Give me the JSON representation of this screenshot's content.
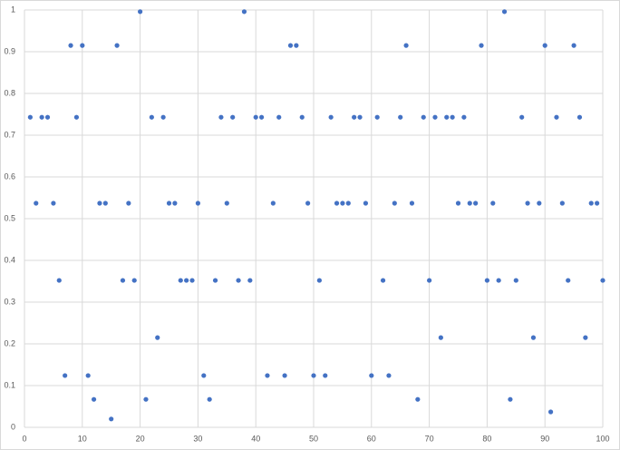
{
  "chart_data": {
    "type": "scatter",
    "color": "#4472c4",
    "grid": true,
    "x": [
      1,
      2,
      3,
      4,
      5,
      6,
      7,
      8,
      9,
      10,
      11,
      12,
      13,
      14,
      15,
      16,
      17,
      18,
      19,
      20,
      21,
      22,
      23,
      24,
      25,
      26,
      27,
      28,
      29,
      30,
      31,
      32,
      33,
      34,
      35,
      36,
      37,
      38,
      39,
      40,
      41,
      42,
      43,
      44,
      45,
      46,
      47,
      48,
      49,
      50,
      51,
      52,
      53,
      54,
      55,
      56,
      57,
      58,
      59,
      60,
      61,
      62,
      63,
      64,
      65,
      66,
      67,
      68,
      69,
      70,
      71,
      72,
      73,
      74,
      75,
      76,
      77,
      78,
      79,
      80,
      81,
      82,
      83,
      84,
      85,
      86,
      87,
      88,
      89,
      90,
      91,
      92,
      93,
      94,
      95,
      96,
      97,
      98,
      99,
      100
    ],
    "values": [
      0.743,
      0.537,
      0.743,
      0.743,
      0.537,
      0.352,
      0.124,
      0.915,
      0.743,
      0.915,
      0.124,
      0.067,
      0.537,
      0.537,
      0.02,
      0.915,
      0.352,
      0.537,
      0.352,
      0.996,
      0.067,
      0.743,
      0.215,
      0.743,
      0.537,
      0.537,
      0.352,
      0.352,
      0.352,
      0.537,
      0.124,
      0.067,
      0.352,
      0.743,
      0.537,
      0.743,
      0.352,
      0.996,
      0.352,
      0.743,
      0.743,
      0.124,
      0.537,
      0.743,
      0.124,
      0.915,
      0.915,
      0.743,
      0.537,
      0.124,
      0.352,
      0.124,
      0.743,
      0.537,
      0.537,
      0.537,
      0.743,
      0.743,
      0.537,
      0.124,
      0.743,
      0.352,
      0.124,
      0.537,
      0.743,
      0.915,
      0.537,
      0.067,
      0.743,
      0.352,
      0.743,
      0.215,
      0.743,
      0.743,
      0.537,
      0.743,
      0.537,
      0.537,
      0.915,
      0.352,
      0.537,
      0.352,
      0.996,
      0.067,
      0.352,
      0.743,
      0.537,
      0.215,
      0.537,
      0.915,
      0.037,
      0.743,
      0.537,
      0.352,
      0.915,
      0.743,
      0.215,
      0.537,
      0.537,
      0.352
    ],
    "xlim": [
      0,
      100
    ],
    "xticks": [
      0,
      10,
      20,
      30,
      40,
      50,
      60,
      70,
      80,
      90,
      100
    ],
    "ylim": [
      0,
      1
    ],
    "yticks": [
      0,
      0.1,
      0.2,
      0.3,
      0.4,
      0.5,
      0.6,
      0.7,
      0.8,
      0.9,
      1
    ]
  }
}
